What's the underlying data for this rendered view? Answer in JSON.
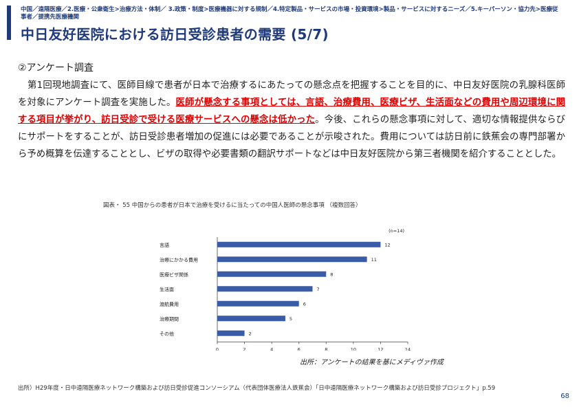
{
  "header": {
    "breadcrumb": "中国／遠隔医療／2.医療・公衆衛生>治療方法・体制／ 3.政策・制度>医療機器に対する規制／4.特定製品・サービスの市場・投資環境>製品・サービスに対するニーズ／5.キーパーソン・協力先>医療従事者／提携先医療機関",
    "title": "中日友好医院における訪日受診患者の需要 (5/7)"
  },
  "content": {
    "section_heading": "②アンケート調査",
    "paragraph_part1": "第1回現地調査にて、医師目線で患者が日本で治療するにあたっての懸念点を把握することを目的に、中日友好医院の乳腺科医師を対象にアンケート調査を実施した。",
    "paragraph_highlight": "医師が懸念する事項としては、言語、治療費用、医療ビザ、生活面などの費用や周辺環境に関する項目が挙がり、訪日受診で受ける医療サービスへの懸念は低かった",
    "paragraph_part2": "。今後、これらの懸念事項に対して、適切な情報提供ならびにサポートをすることが、訪日受診患者増加の促進には必要であることが示唆された。費用については訪日前に鉄蕉会の専門部署から予め概算を伝達することとし、ビザの取得や必要書類の翻訳サポートなどは中日友好医院から第三者機関を紹介することとした。"
  },
  "figure": {
    "caption": "図表・ 55 中国からの患者が日本で治療を受けるに当たっての中国人医師の懸念事項 （複数回答）",
    "sample_note": "(n=14)",
    "source": "出所：アンケートの結果を基にメディヴァ作成"
  },
  "chart_data": {
    "type": "bar",
    "orientation": "horizontal",
    "categories": [
      "言語",
      "治療にかかる費用",
      "医療ビザ関係",
      "生活面",
      "渡航費用",
      "治療期間",
      "その他"
    ],
    "values": [
      12,
      11,
      8,
      7,
      6,
      5,
      2
    ],
    "xlim": [
      0,
      14
    ],
    "xticks": [
      0,
      2,
      4,
      6,
      8,
      10,
      12,
      14
    ],
    "bar_color": "#3a5ba8",
    "grid": false
  },
  "footer": {
    "source": "出所）H29年度・日中遠隔医療ネットワーク構築および訪日受診促進コンソーシアム（代表団体医療法人鉄蕉会）「日中遠隔医療ネットワーク構築および訪日受診プロジェクト」p.59",
    "page_number": "68"
  }
}
